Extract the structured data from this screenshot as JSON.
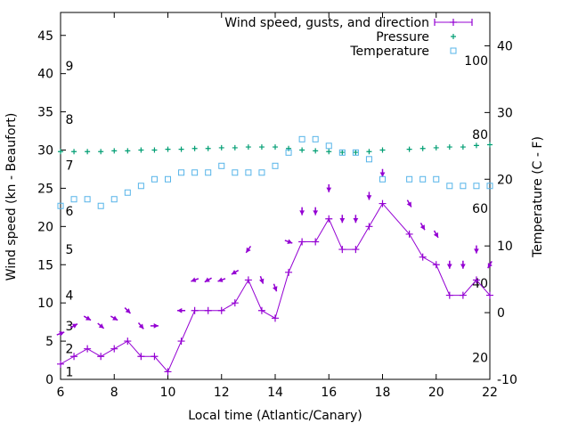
{
  "chart_data": {
    "type": "line",
    "title": "",
    "xlabel": "Local time (Atlantic/Canary)",
    "ylabel": "Wind speed (kn - Beaufort)",
    "y2label": "Temperature (C - F)",
    "xlim": [
      6,
      22
    ],
    "ylim": [
      0,
      48
    ],
    "y2lim": [
      -10,
      45
    ],
    "x_ticks": [
      6,
      8,
      10,
      12,
      14,
      16,
      18,
      20,
      22
    ],
    "y_ticks": [
      0,
      5,
      10,
      15,
      20,
      25,
      30,
      35,
      40,
      45
    ],
    "y2_ticks": [
      -10,
      0,
      10,
      20,
      30,
      40
    ],
    "beaufort_labels": [
      {
        "text": "1",
        "y": 1.0
      },
      {
        "text": "2",
        "y": 4.0
      },
      {
        "text": "3",
        "y": 7.0
      },
      {
        "text": "4",
        "y": 11.0
      },
      {
        "text": "5",
        "y": 17.0
      },
      {
        "text": "6",
        "y": 22.0
      },
      {
        "text": "7",
        "y": 28.0
      },
      {
        "text": "8",
        "y": 34.0
      },
      {
        "text": "9",
        "y": 41.0
      }
    ],
    "fahrenheit_labels": [
      {
        "text": "20",
        "y": -6.7
      },
      {
        "text": "40",
        "y": 4.4
      },
      {
        "text": "60",
        "y": 15.6
      },
      {
        "text": "80",
        "y": 26.7
      },
      {
        "text": "100",
        "y": 37.8
      }
    ],
    "grid": false,
    "legend_position": "top-right",
    "series": [
      {
        "name": "Wind speed, gusts, and direction",
        "axis": "y",
        "color": "#9400d3",
        "x": [
          6,
          6.5,
          7,
          7.5,
          8,
          8.5,
          9,
          9.5,
          10,
          10.5,
          11,
          11.5,
          12,
          12.5,
          13,
          13.5,
          14,
          14.5,
          15,
          15.5,
          16,
          16.5,
          17,
          17.5,
          18,
          19,
          19.5,
          20,
          20.5,
          21,
          21.5,
          22
        ],
        "y": [
          2,
          3,
          4,
          3,
          4,
          5,
          3,
          3,
          1,
          5,
          9,
          9,
          9,
          10,
          13,
          9,
          8,
          14,
          18,
          18,
          21,
          17,
          17,
          20,
          23,
          19,
          16,
          15,
          11,
          11,
          13,
          11
        ],
        "gusts": [
          6,
          7,
          8,
          7,
          8,
          9,
          7,
          7,
          0,
          9,
          13,
          13,
          13,
          14,
          17,
          13,
          12,
          18,
          22,
          22,
          25,
          21,
          21,
          24,
          27,
          23,
          20,
          19,
          15,
          15,
          17,
          15
        ],
        "direction_deg": [
          250,
          240,
          300,
          310,
          300,
          315,
          320,
          270,
          0,
          90,
          70,
          60,
          70,
          60,
          35,
          340,
          340,
          290,
          0,
          0,
          0,
          0,
          0,
          0,
          0,
          330,
          330,
          330,
          0,
          0,
          0,
          30
        ]
      },
      {
        "name": "Pressure",
        "axis": "y",
        "color": "#009e73",
        "x": [
          6,
          6.5,
          7,
          7.5,
          8,
          8.5,
          9,
          9.5,
          10,
          10.5,
          11,
          11.5,
          12,
          12.5,
          13,
          13.5,
          14,
          14.5,
          15,
          15.5,
          16,
          16.5,
          17,
          17.5,
          18,
          19,
          19.5,
          20,
          20.5,
          21,
          21.5,
          22
        ],
        "y": [
          29.8,
          29.8,
          29.8,
          29.8,
          29.9,
          29.9,
          30.0,
          30.0,
          30.1,
          30.1,
          30.2,
          30.2,
          30.3,
          30.3,
          30.4,
          30.4,
          30.4,
          30.2,
          30.0,
          29.9,
          29.8,
          29.7,
          29.7,
          29.8,
          30.0,
          30.1,
          30.2,
          30.3,
          30.4,
          30.4,
          30.6,
          30.7
        ]
      },
      {
        "name": "Temperature",
        "axis": "y2",
        "color": "#56b4e9",
        "x": [
          6,
          6.5,
          7,
          7.5,
          8,
          8.5,
          9,
          9.5,
          10,
          10.5,
          11,
          11.5,
          12,
          12.5,
          13,
          13.5,
          14,
          14.5,
          15,
          15.5,
          16,
          16.5,
          17,
          17.5,
          18,
          19,
          19.5,
          20,
          20.5,
          21,
          21.5,
          22
        ],
        "y": [
          16,
          17,
          17,
          16,
          17,
          18,
          19,
          20,
          20,
          21,
          21,
          21,
          22,
          21,
          21,
          21,
          22,
          24,
          26,
          26,
          25,
          24,
          24,
          23,
          20,
          20,
          20,
          20,
          19,
          19,
          19,
          19
        ]
      }
    ]
  }
}
